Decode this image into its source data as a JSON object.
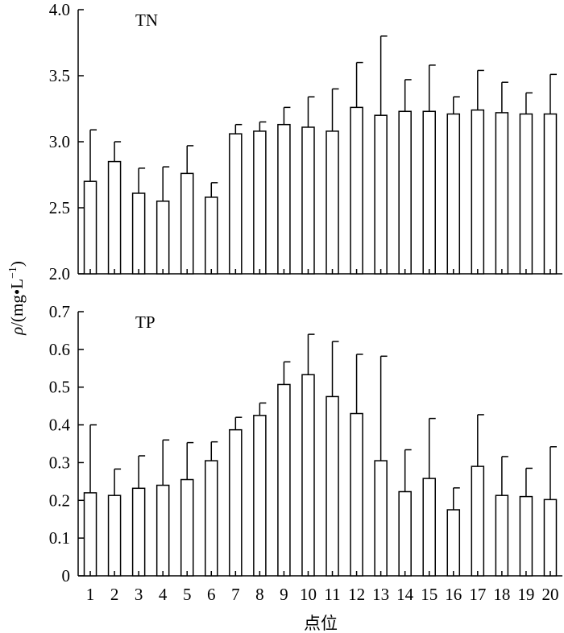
{
  "chart_data": [
    {
      "type": "bar",
      "title": "TN",
      "categories": [
        "1",
        "2",
        "3",
        "4",
        "5",
        "6",
        "7",
        "8",
        "9",
        "10",
        "11",
        "12",
        "13",
        "14",
        "15",
        "16",
        "17",
        "18",
        "19",
        "20"
      ],
      "values": [
        2.7,
        2.85,
        2.61,
        2.55,
        2.76,
        2.58,
        3.06,
        3.08,
        3.13,
        3.11,
        3.08,
        3.26,
        3.2,
        3.23,
        3.23,
        3.21,
        3.24,
        3.22,
        3.21,
        3.21
      ],
      "error_upper": [
        0.39,
        0.15,
        0.19,
        0.26,
        0.21,
        0.11,
        0.07,
        0.07,
        0.13,
        0.23,
        0.32,
        0.34,
        0.6,
        0.24,
        0.35,
        0.13,
        0.3,
        0.23,
        0.16,
        0.3
      ],
      "ylim": [
        2.0,
        4.0
      ],
      "yticks": [
        "2.0",
        "2.5",
        "3.0",
        "3.5",
        "4.0"
      ],
      "ytick_values": [
        2.0,
        2.5,
        3.0,
        3.5,
        4.0
      ],
      "grid": false
    },
    {
      "type": "bar",
      "title": "TP",
      "categories": [
        "1",
        "2",
        "3",
        "4",
        "5",
        "6",
        "7",
        "8",
        "9",
        "10",
        "11",
        "12",
        "13",
        "14",
        "15",
        "16",
        "17",
        "18",
        "19",
        "20"
      ],
      "values": [
        0.22,
        0.213,
        0.232,
        0.24,
        0.255,
        0.305,
        0.387,
        0.425,
        0.507,
        0.533,
        0.475,
        0.43,
        0.305,
        0.223,
        0.258,
        0.175,
        0.29,
        0.213,
        0.21,
        0.202
      ],
      "error_upper": [
        0.18,
        0.07,
        0.086,
        0.12,
        0.098,
        0.05,
        0.033,
        0.033,
        0.06,
        0.107,
        0.146,
        0.157,
        0.277,
        0.111,
        0.159,
        0.058,
        0.137,
        0.103,
        0.075,
        0.14
      ],
      "ylim": [
        0,
        0.7
      ],
      "yticks": [
        "0",
        "0.1",
        "0.2",
        "0.3",
        "0.4",
        "0.5",
        "0.6",
        "0.7"
      ],
      "ytick_values": [
        0,
        0.1,
        0.2,
        0.3,
        0.4,
        0.5,
        0.6,
        0.7
      ],
      "xlabel": "点位",
      "grid": false
    }
  ],
  "ylabel": {
    "symbol": "ρ",
    "unit_open": "/(mg",
    "unit_dot": "•",
    "unit_L": "L",
    "unit_exp": "−1",
    "unit_close": ")"
  }
}
